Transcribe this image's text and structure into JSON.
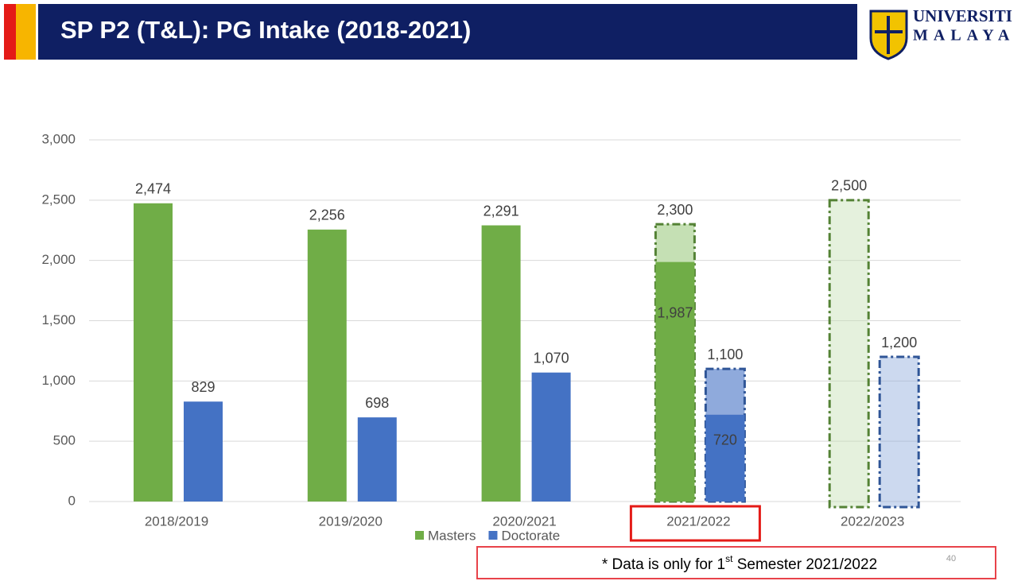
{
  "slide": {
    "title": "SP P2 (T&L): PG Intake (2018-2021)",
    "logo_line1": "UNIVERSITI",
    "logo_line2": "MALAYA",
    "page_number": "40",
    "note_prefix": "* Data is only for 1",
    "note_sup": "st",
    "note_suffix": " Semester 2021/2022"
  },
  "chart_data": {
    "type": "bar",
    "categories": [
      "2018/2019",
      "2019/2020",
      "2020/2021",
      "2021/2022",
      "2022/2023"
    ],
    "highlight_category": 3,
    "series": [
      {
        "name": "Masters",
        "color": "#70ad47",
        "target_color": "#c5e0b4",
        "target_stroke": "#548235",
        "values": [
          2474,
          2256,
          2291,
          1987,
          null
        ],
        "value_labels": [
          "2,474",
          "2,256",
          "2,291",
          "1,987",
          null
        ],
        "targets": [
          null,
          null,
          null,
          2300,
          2500
        ],
        "target_labels": [
          null,
          null,
          null,
          "2,300",
          "2,500"
        ]
      },
      {
        "name": "Doctorate",
        "color": "#4472c4",
        "target_color": "#8faadc",
        "target_stroke": "#2f5597",
        "values": [
          829,
          698,
          1070,
          720,
          null
        ],
        "value_labels": [
          null,
          null,
          "1,070",
          null,
          null
        ],
        "targets": [
          null,
          null,
          null,
          1100,
          1200
        ],
        "target_labels": [
          null,
          null,
          null,
          "1,100",
          "1,200"
        ]
      }
    ],
    "ylim": [
      0,
      3000
    ],
    "yticks": [
      0,
      {
        "value": 500,
        "label": "500"
      },
      {
        "value": 1000,
        "label": "1,000"
      },
      {
        "value": 1500,
        "label": "1,500"
      },
      {
        "value": 2000,
        "label": "2,000"
      },
      {
        "value": 2500,
        "label": "2,500"
      },
      {
        "value": 3000,
        "label": "3,000"
      }
    ],
    "grid": true
  }
}
